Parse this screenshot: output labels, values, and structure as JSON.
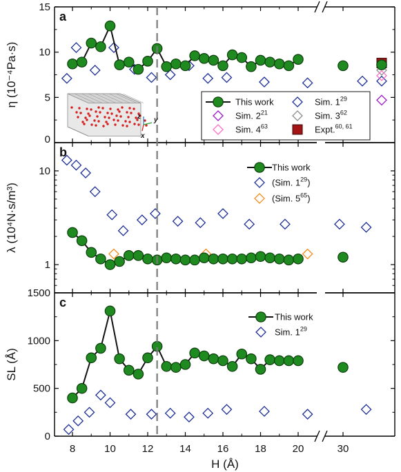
{
  "chart_data": [
    {
      "panel": "a",
      "type": "scatter",
      "ylabel": "η (10⁻⁴Pa·s)",
      "ylim": [
        0,
        15
      ],
      "yticks": [
        0,
        5,
        10,
        15
      ],
      "series": [
        {
          "name": "This work",
          "marker": "circle",
          "color": "#1f8a1f",
          "line": true,
          "break_after": 20,
          "x": [
            8,
            8.5,
            9,
            9.5,
            10,
            10.5,
            11,
            11.5,
            12,
            12.5,
            13,
            13.5,
            14,
            14.5,
            15,
            15.5,
            16,
            16.5,
            17,
            17.5,
            18,
            18.5,
            19,
            19.5,
            20,
            30,
            33
          ],
          "y": [
            8.7,
            8.9,
            11.0,
            10.6,
            12.9,
            8.6,
            8.9,
            8.1,
            9.0,
            10.4,
            8.4,
            8.7,
            8.5,
            9.6,
            9.3,
            9.1,
            8.5,
            9.7,
            9.4,
            8.4,
            9.1,
            8.9,
            8.7,
            8.5,
            9.2,
            8.5,
            8.6
          ]
        },
        {
          "name": "Sim. 1",
          "ref": "29",
          "marker": "diamond",
          "color": "#1c2d96",
          "x": [
            7.7,
            8.2,
            9.2,
            10.2,
            11.3,
            12.2,
            13.2,
            14.2,
            15.2,
            16.2,
            18.2,
            20.5,
            31.5,
            33
          ],
          "y": [
            7.1,
            10.5,
            8.0,
            10.5,
            8.1,
            7.2,
            7.5,
            8.5,
            7.1,
            7.2,
            6.7,
            6.6,
            6.8,
            6.8
          ]
        },
        {
          "name": "Sim. 2",
          "ref": "21",
          "marker": "diamond",
          "color": "#9b16c9",
          "x": [
            33
          ],
          "y": [
            4.7
          ]
        },
        {
          "name": "Sim. 3",
          "ref": "62",
          "marker": "diamond",
          "color": "#8c8c8c",
          "x": [
            33
          ],
          "y": [
            8.0
          ]
        },
        {
          "name": "Sim. 4",
          "ref": "63",
          "marker": "diamond",
          "color": "#ff6ec7",
          "x": [
            33
          ],
          "y": [
            7.4
          ]
        },
        {
          "name": "Expt.",
          "ref": "60, 61",
          "marker": "square",
          "color": "#a31515",
          "x": [
            33
          ],
          "y": [
            8.8
          ]
        }
      ],
      "inset_axes": [
        "z",
        "y",
        "x"
      ]
    },
    {
      "panel": "b",
      "type": "scatter",
      "ylabel": "λ (10⁴N·s/m³)",
      "yscale": "log",
      "ylim": [
        0.5,
        20
      ],
      "yticks": [
        1,
        10
      ],
      "series": [
        {
          "name": "This work",
          "marker": "circle",
          "color": "#1f8a1f",
          "line": true,
          "x": [
            8,
            8.5,
            9,
            9.5,
            10,
            10.5,
            11,
            11.5,
            12,
            12.5,
            13,
            13.5,
            14,
            14.5,
            15,
            15.5,
            16,
            16.5,
            17,
            17.5,
            18,
            18.5,
            19,
            19.5,
            20,
            30
          ],
          "y": [
            2.2,
            1.8,
            1.35,
            1.15,
            1.0,
            1.08,
            1.25,
            1.25,
            1.15,
            1.12,
            1.18,
            1.15,
            1.12,
            1.12,
            1.18,
            1.15,
            1.15,
            1.15,
            1.15,
            1.18,
            1.22,
            1.18,
            1.15,
            1.12,
            1.15,
            1.2
          ]
        },
        {
          "name": "(Sim. 1)",
          "ref": "29",
          "marker": "diamond",
          "color": "#1c2d96",
          "x": [
            7.7,
            8.2,
            8.7,
            9.2,
            10.1,
            10.7,
            11.7,
            12.4,
            13.6,
            14.8,
            16.0,
            17.4,
            19.3,
            22.2,
            31.8
          ],
          "y": [
            13,
            11.5,
            9.5,
            6,
            3.4,
            2.3,
            3,
            3.5,
            2.9,
            2.8,
            3.5,
            2.7,
            2.7,
            2.7,
            2.5
          ]
        },
        {
          "name": "(Sim. 5)",
          "ref": "65",
          "marker": "diamond",
          "color": "#f28c1a",
          "x": [
            10.2,
            15.1,
            20.5
          ],
          "y": [
            1.3,
            1.3,
            1.3
          ]
        }
      ]
    },
    {
      "panel": "c",
      "type": "scatter",
      "xlabel": "H (Å)",
      "ylabel": "SL (Å)",
      "ylim": [
        0,
        1500
      ],
      "yticks": [
        0,
        500,
        1000,
        1500
      ],
      "series": [
        {
          "name": "This work",
          "marker": "circle",
          "color": "#1f8a1f",
          "line": true,
          "x": [
            8,
            8.5,
            9,
            9.5,
            10,
            10.5,
            11,
            11.5,
            12,
            12.5,
            13,
            13.5,
            14,
            14.5,
            15,
            15.5,
            16,
            16.5,
            17,
            17.5,
            18,
            18.5,
            19,
            19.5,
            20,
            30
          ],
          "y": [
            400,
            500,
            820,
            920,
            1310,
            810,
            690,
            650,
            820,
            940,
            730,
            720,
            750,
            870,
            840,
            810,
            790,
            730,
            860,
            810,
            700,
            800,
            790,
            790,
            790,
            720
          ]
        },
        {
          "name": "Sim. 1",
          "ref": "29",
          "marker": "diamond",
          "color": "#1c2d96",
          "x": [
            7.8,
            8.3,
            8.9,
            9.5,
            10.0,
            11.1,
            12.2,
            13.2,
            14.2,
            15.2,
            16.2,
            18.2,
            20.5,
            31.8
          ],
          "y": [
            70,
            160,
            250,
            430,
            350,
            230,
            230,
            240,
            200,
            240,
            280,
            260,
            230,
            280
          ]
        }
      ]
    }
  ],
  "x_axis": {
    "ticks": [
      8,
      10,
      12,
      14,
      16,
      18,
      20,
      30
    ],
    "break_between": [
      20,
      30
    ],
    "reference_line_x": 12.5
  }
}
